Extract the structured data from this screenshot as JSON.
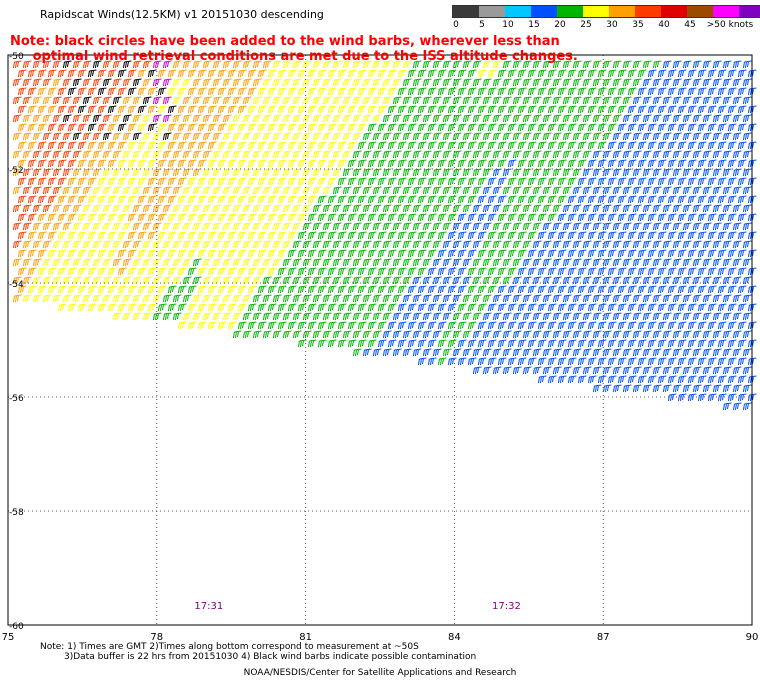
{
  "header": {
    "title": "Rapidscat Winds(12.5KM) v1 20151030 descending",
    "note_line1": "Note: black circles have been added to the wind barbs, wherever less than",
    "note_line2": "     optimal wind retrieval conditions are met due to the ISS altitude changes."
  },
  "legend": {
    "labels": [
      "0",
      "5",
      "10",
      "15",
      "20",
      "25",
      "30",
      "35",
      "40",
      "45",
      ">50 knots"
    ],
    "colors": [
      "#3a3a3a",
      "#9a9a9a",
      "#00c8ff",
      "#0050ff",
      "#00b400",
      "#ffff00",
      "#ffa000",
      "#ff3c00",
      "#e00000",
      "#9c4a00",
      "#ff00ff",
      "#8000c0"
    ]
  },
  "axes": {
    "lon_ticks": [
      "75",
      "78",
      "81",
      "84",
      "87",
      "90"
    ],
    "lat_ticks": [
      "-50",
      "-52",
      "-54",
      "-56",
      "-58",
      "-60"
    ]
  },
  "time_labels": [
    "17:31",
    "17:32"
  ],
  "footer": {
    "line1": "Note: 1) Times are GMT 2)Times along bottom correspond to measurement at ~50S",
    "line2": "3)Data buffer is 22 hrs from 20151030 4) Black wind barbs indicate possible contamination",
    "line3": "NOAA/NESDIS/Center for Satellite Applications and Research"
  },
  "colors": {
    "grid": "#555555",
    "time_label": "#800080",
    "note": "#ff0000"
  }
}
